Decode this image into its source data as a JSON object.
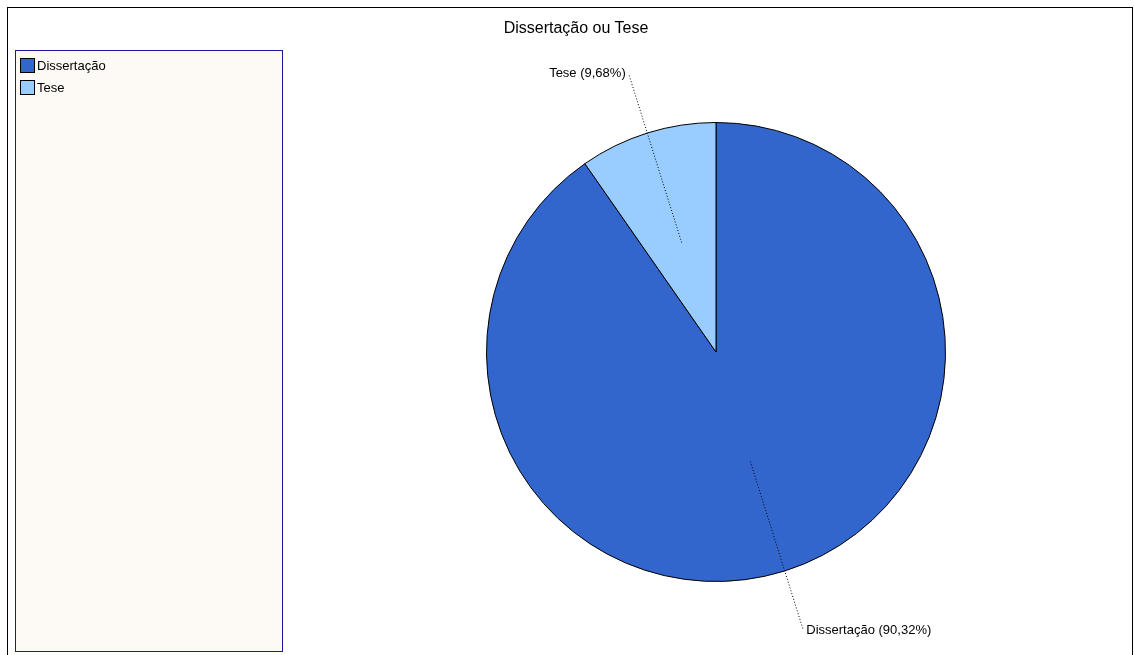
{
  "chart_data": {
    "type": "pie",
    "title": "Dissertação ou Tese",
    "categories": [
      "Dissertação",
      "Tese"
    ],
    "values": [
      90.32,
      9.68
    ],
    "colors": [
      "#3366cc",
      "#99ccff"
    ],
    "value_labels": [
      "Dissertação (90,32%)",
      "Tese (9,68%)"
    ],
    "legend": "top left"
  }
}
